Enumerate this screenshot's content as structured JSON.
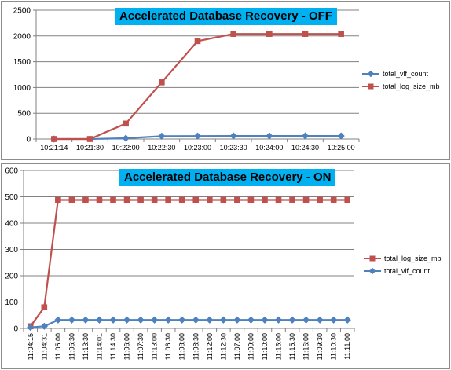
{
  "colors": {
    "blue_series": "#4f81bd",
    "red_series": "#c0504d",
    "title_bg": "#00b0f0",
    "grid": "#808080"
  },
  "chart_data": [
    {
      "type": "line",
      "title": "Accelerated Database Recovery - OFF",
      "categories": [
        "10:21:14",
        "10:21:30",
        "10:22:00",
        "10:22:30",
        "10:23:00",
        "10:23:30",
        "10:24:00",
        "10:24:30",
        "10:25:00"
      ],
      "y_ticks": [
        "0",
        "500",
        "1000",
        "1500",
        "2000",
        "2500"
      ],
      "ylim": [
        0,
        2500
      ],
      "grid": true,
      "legend_position": "right",
      "series": [
        {
          "name": "total_vlf_count",
          "color": "#4f81bd",
          "marker": "diamond",
          "values": [
            0,
            0,
            15,
            55,
            58,
            60,
            60,
            60,
            60
          ]
        },
        {
          "name": "total_log_size_mb",
          "color": "#c0504d",
          "marker": "square",
          "values": [
            0,
            0,
            300,
            1100,
            1900,
            2040,
            2040,
            2040,
            2040
          ]
        }
      ],
      "legend_order": [
        "total_vlf_count",
        "total_log_size_mb"
      ]
    },
    {
      "type": "line",
      "title": "Accelerated Database Recovery - ON",
      "categories": [
        "11:04:15",
        "11:04:31",
        "11:05:00",
        "11:05:30",
        "11:13:30",
        "11:14:01",
        "11:14:30",
        "11:06:00",
        "11:07:30",
        "11:13:00",
        "11:06:30",
        "11:08:00",
        "11:08:30",
        "11:12:00",
        "11:12:30",
        "11:07:00",
        "11:09:00",
        "11:10:00",
        "11:15:00",
        "11:15:30",
        "11:16:00",
        "11:09:30",
        "11:10:30",
        "11:11:00"
      ],
      "y_ticks": [
        "0",
        "100",
        "200",
        "300",
        "400",
        "500",
        "600"
      ],
      "ylim": [
        0,
        600
      ],
      "grid": true,
      "legend_position": "right",
      "series": [
        {
          "name": "total_log_size_mb",
          "color": "#c0504d",
          "marker": "square",
          "values": [
            8,
            80,
            488,
            488,
            488,
            488,
            488,
            488,
            488,
            488,
            488,
            488,
            488,
            488,
            488,
            488,
            488,
            488,
            488,
            488,
            488,
            488,
            488,
            488
          ]
        },
        {
          "name": "total_vlf_count",
          "color": "#4f81bd",
          "marker": "diamond",
          "values": [
            4,
            8,
            32,
            32,
            32,
            32,
            32,
            32,
            32,
            32,
            32,
            32,
            32,
            32,
            32,
            32,
            32,
            32,
            32,
            32,
            32,
            32,
            32,
            32
          ]
        }
      ],
      "legend_order": [
        "total_log_size_mb",
        "total_vlf_count"
      ]
    }
  ]
}
